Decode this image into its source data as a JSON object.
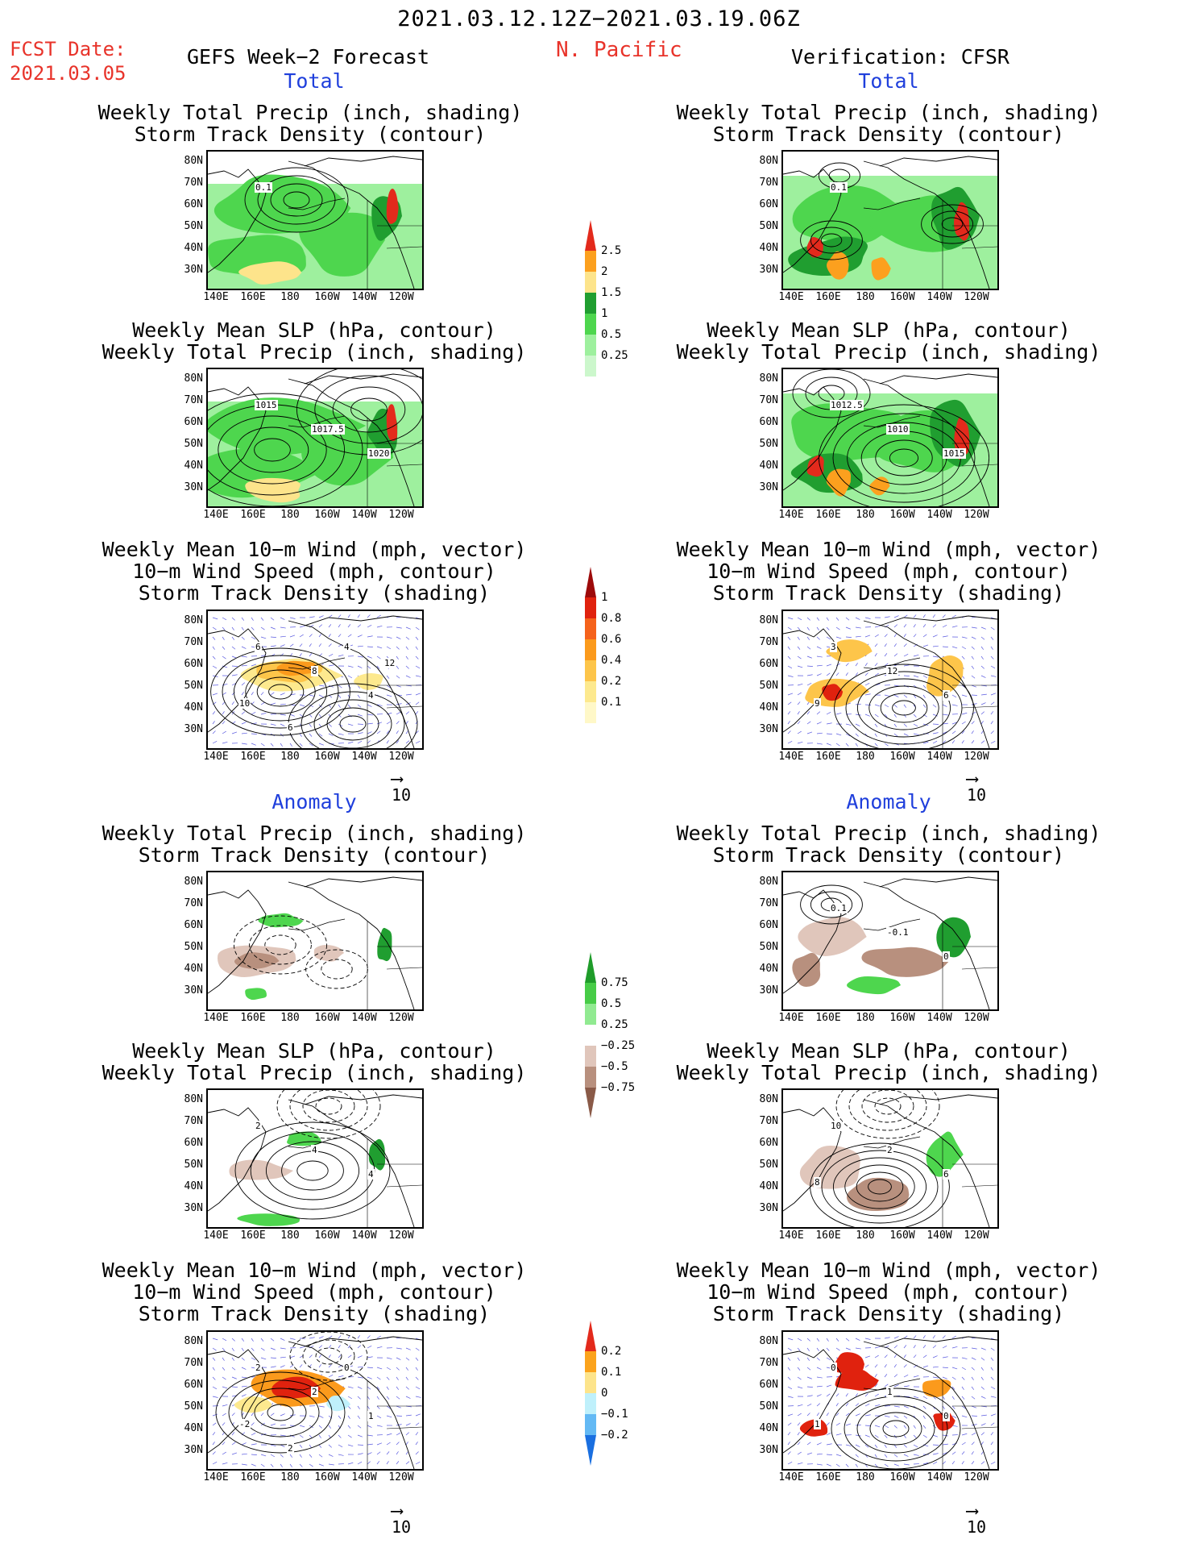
{
  "header": {
    "date_range": "2021.03.12.12Z−2021.03.19.06Z",
    "fcst_label": "FCST Date:",
    "fcst_date": "2021.03.05",
    "left_title": "GEFS Week−2 Forecast",
    "region": "N. Pacific",
    "right_title": "Verification: CFSR"
  },
  "sections": {
    "total": "Total",
    "anomaly": "Anomaly"
  },
  "panel_titles": {
    "precip_track": [
      "Weekly Total Precip (inch, shading)",
      "Storm Track Density (contour)"
    ],
    "slp_precip": [
      "Weekly Mean SLP (hPa, contour)",
      "Weekly Total Precip (inch, shading)"
    ],
    "wind": [
      "Weekly Mean 10−m Wind (mph, vector)",
      "10−m Wind Speed (mph, contour)",
      "Storm Track Density (shading)"
    ]
  },
  "axes": {
    "lat_labels": [
      "80N",
      "70N",
      "60N",
      "50N",
      "40N",
      "30N"
    ],
    "lon_labels": [
      "140E",
      "160E",
      "180",
      "160W",
      "140W",
      "120W"
    ]
  },
  "vector_ref": "10",
  "contour_labels": {
    "left_total_precip": [
      "0.1"
    ],
    "right_total_precip": [
      "0.1"
    ],
    "left_total_slp": [
      "1015",
      "1017.5",
      "1020"
    ],
    "right_total_slp": [
      "1012.5",
      "1010",
      "1015"
    ],
    "left_total_wind": [
      "6",
      "8",
      "4",
      "10",
      "4",
      "6",
      "12"
    ],
    "right_total_wind": [
      "3",
      "12",
      "6",
      "9"
    ],
    "left_anom_slp": [
      "2",
      "4",
      "4"
    ],
    "right_anom_slp": [
      "10",
      "2",
      "6",
      "8"
    ],
    "right_anom_precip": [
      "0.1",
      "-0.1",
      "0"
    ],
    "left_anom_wind": [
      "2",
      "2",
      "1",
      "-2",
      "0",
      "2"
    ],
    "right_anom_wind": [
      "0",
      "1",
      "0",
      "1"
    ]
  },
  "colorbars": [
    {
      "name": "total-precip-scale",
      "labels": [
        "2.5",
        "2",
        "1.5",
        "1",
        "0.5",
        "0.25"
      ],
      "colors": [
        "#e32a1c",
        "#fca01e",
        "#fde48b",
        "#209e30",
        "#4ed64e",
        "#9ef09e",
        "#ccf7cc"
      ]
    },
    {
      "name": "total-track-scale",
      "labels": [
        "1",
        "0.8",
        "0.6",
        "0.4",
        "0.2",
        "0.1"
      ],
      "colors": [
        "#9d0a0a",
        "#e0220e",
        "#f5621b",
        "#fb9a1c",
        "#fdc54a",
        "#fde98e",
        "#fff8c8"
      ]
    },
    {
      "name": "anom-precip-scale",
      "labels": [
        "0.75",
        "0.5",
        "0.25",
        "−0.25",
        "−0.5",
        "−0.75"
      ],
      "colors": [
        "#1f9c2a",
        "#47cc47",
        "#91ea91",
        "#ffffff",
        "#e0c6bb",
        "#b8907e",
        "#8a5a48"
      ]
    },
    {
      "name": "anom-track-scale",
      "labels": [
        "0.2",
        "0.1",
        "0",
        "−0.1",
        "−0.2"
      ],
      "colors": [
        "#e32a1c",
        "#fba31c",
        "#fde48b",
        "#bff0fb",
        "#63b9f4",
        "#1a6fe0"
      ]
    }
  ]
}
